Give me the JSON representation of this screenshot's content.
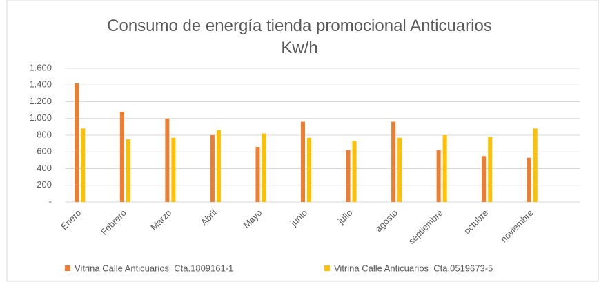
{
  "chart_data": {
    "type": "bar",
    "title": "Consumo de energía tienda promocional Anticuarios Kw/h",
    "categories": [
      "Enero",
      "Febrero",
      "Marzo",
      "Abril",
      "Mayo",
      "junio",
      "julio",
      "agosto",
      "septiembre",
      "octubre",
      "noviembre"
    ],
    "series": [
      {
        "name": "Vitrina Calle Anticuarios  Cta.1809161-1",
        "color": "#ed7d31",
        "values": [
          1420,
          1080,
          1000,
          800,
          660,
          960,
          620,
          960,
          620,
          550,
          530
        ]
      },
      {
        "name": "Vitrina Calle Anticuarios  Cta.0519673-5",
        "color": "#ffc000",
        "values": [
          880,
          750,
          770,
          860,
          820,
          770,
          730,
          770,
          800,
          780,
          880
        ]
      }
    ],
    "ylim": [
      0,
      1600
    ],
    "yticks": [
      {
        "value": 0,
        "label": "-"
      },
      200,
      400,
      600,
      800,
      {
        "value": 1000,
        "label": "1.000"
      },
      {
        "value": 1200,
        "label": "1.200"
      },
      {
        "value": 1400,
        "label": "1.400"
      },
      {
        "value": 1600,
        "label": "1.600"
      }
    ],
    "grid": true,
    "legend": "bottom"
  }
}
